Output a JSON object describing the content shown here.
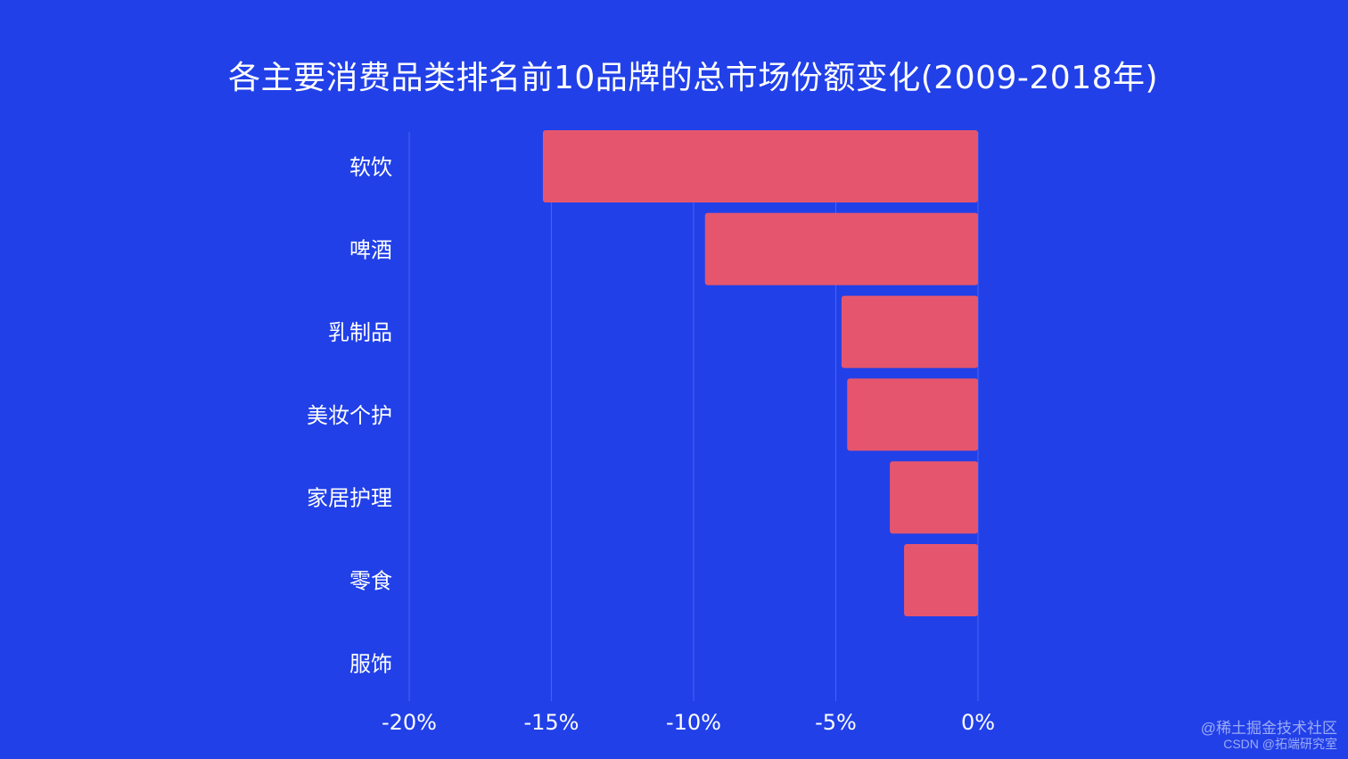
{
  "chart_data": {
    "type": "bar",
    "orientation": "horizontal",
    "title": "各主要消费品类排名前10品牌的总市场份额变化(2009-2018年)",
    "categories": [
      "软饮",
      "啤酒",
      "乳制品",
      "美妆个护",
      "家居护理",
      "零食",
      "服饰"
    ],
    "values": [
      -15.3,
      -9.6,
      -4.8,
      -4.6,
      -3.1,
      -2.6,
      0
    ],
    "xlim": [
      -20,
      0
    ],
    "xticks": [
      -20,
      -15,
      -10,
      -5,
      0
    ],
    "xtick_labels": [
      "-20%",
      "-15%",
      "-10%",
      "-5%",
      "0%"
    ],
    "grid": "vertical",
    "bar_color": "#e5566e",
    "background_color": "#2140e8",
    "grid_color": "#4a63ee",
    "text_color": "#ffffff"
  },
  "watermark": {
    "line1": "@稀土掘金技术社区",
    "line2": "CSDN @拓端研究室"
  }
}
